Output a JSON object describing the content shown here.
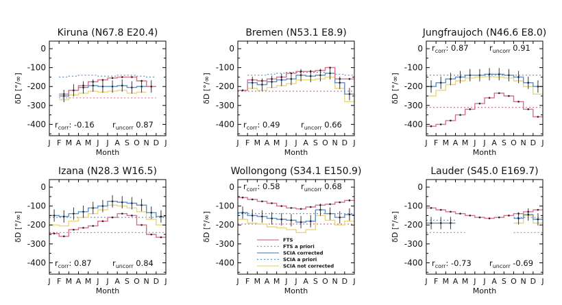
{
  "legend": [
    {
      "key": "fts",
      "label": "FTS",
      "color": "#d66f8a",
      "dash": ""
    },
    {
      "key": "fts_apriori",
      "label": "FTS a priori",
      "color": "#d66f8a",
      "dash": "2,3"
    },
    {
      "key": "scia_corr",
      "label": "SCIA corrected",
      "color": "#5a8ec4",
      "dash": ""
    },
    {
      "key": "scia_apriori",
      "label": "SCIA a priori",
      "color": "#5a8ec4",
      "dash": "2,3"
    },
    {
      "key": "scia_notcorr",
      "label": "SCIA not corrected",
      "color": "#e8d67c",
      "dash": ""
    }
  ],
  "chart_data": [
    {
      "type": "line",
      "title": "Kiruna (N67.8 E20.4)",
      "xlabel": "Month",
      "ylabel": "δD [°/∞]",
      "xticks": [
        "J",
        "F",
        "M",
        "A",
        "M",
        "J",
        "J",
        "A",
        "S",
        "O",
        "N",
        "D",
        "J"
      ],
      "yticks": [
        0,
        -100,
        -200,
        -300,
        -400
      ],
      "ylim": [
        -460,
        40
      ],
      "r_corr": "-0.16",
      "r_uncorr": "0.87",
      "r_position": "bottom",
      "series": {
        "fts": [
          null,
          -240,
          -220,
          -195,
          -175,
          -165,
          -155,
          -150,
          -150,
          -170,
          -200,
          null,
          null
        ],
        "fts_apriori": [
          null,
          -260,
          -260,
          -260,
          -260,
          -260,
          -260,
          -260,
          -260,
          -260,
          -260,
          null,
          null
        ],
        "scia_corr": [
          null,
          -250,
          -220,
          -205,
          -195,
          -200,
          -200,
          -195,
          -205,
          -200,
          -200,
          null,
          null
        ],
        "scia_apriori": [
          null,
          -150,
          -145,
          -140,
          -140,
          -145,
          -145,
          -140,
          -140,
          -145,
          -150,
          null,
          null
        ],
        "scia_notcorr": [
          null,
          -270,
          -245,
          -235,
          -225,
          -230,
          -225,
          -220,
          -235,
          -230,
          null,
          null,
          null
        ]
      }
    },
    {
      "type": "line",
      "title": "Bremen (N53.1 E8.9)",
      "xlabel": "Month",
      "ylabel": "δD [°/∞]",
      "xticks": [
        "J",
        "F",
        "M",
        "A",
        "M",
        "J",
        "J",
        "A",
        "S",
        "O",
        "N",
        "D",
        "J"
      ],
      "yticks": [
        0,
        -100,
        -200,
        -300,
        -400
      ],
      "ylim": [
        -460,
        40
      ],
      "r_corr": "0.49",
      "r_uncorr": "0.66",
      "r_position": "bottom",
      "series": {
        "fts": [
          -220,
          -165,
          -170,
          -160,
          -150,
          -130,
          -120,
          -120,
          -115,
          -100,
          -160,
          -160,
          null
        ],
        "fts_apriori": [
          -225,
          -225,
          -225,
          -225,
          -225,
          -225,
          -225,
          -225,
          -225,
          -225,
          -225,
          -225,
          null
        ],
        "scia_corr": [
          null,
          -180,
          -190,
          -175,
          -165,
          -160,
          -140,
          -145,
          -140,
          -130,
          -180,
          -240,
          null
        ],
        "scia_apriori": [
          null,
          -140,
          -140,
          -135,
          -130,
          -125,
          -125,
          -125,
          -125,
          -130,
          -135,
          -140,
          null
        ],
        "scia_notcorr": [
          null,
          -210,
          -220,
          -205,
          -195,
          -185,
          -165,
          -165,
          -160,
          -150,
          -210,
          -280,
          null
        ]
      }
    },
    {
      "type": "line",
      "title": "Jungfraujoch (N46.6 E8.0)",
      "xlabel": "Month",
      "ylabel": "δD [°/∞]",
      "xticks": [
        "J",
        "F",
        "M",
        "A",
        "M",
        "J",
        "J",
        "A",
        "S",
        "O",
        "N",
        "D",
        "J"
      ],
      "yticks": [
        0,
        -100,
        -200,
        -300,
        -400
      ],
      "ylim": [
        -460,
        40
      ],
      "r_corr": "0.87",
      "r_uncorr": "0.91",
      "r_position": "top",
      "series": {
        "fts": [
          -410,
          -400,
          -380,
          -350,
          -320,
          -290,
          -260,
          -235,
          -250,
          -280,
          -320,
          -360,
          -400
        ],
        "fts_apriori": [
          -310,
          -310,
          -310,
          -310,
          -310,
          -310,
          -310,
          -310,
          -310,
          -310,
          -310,
          -310,
          -310
        ],
        "scia_corr": [
          -200,
          -180,
          -160,
          -150,
          -140,
          -140,
          -135,
          -135,
          -140,
          -150,
          -180,
          -200,
          null
        ],
        "scia_apriori": [
          -140,
          -140,
          -140,
          -140,
          -140,
          -140,
          -140,
          -140,
          -140,
          -140,
          -140,
          -140,
          null
        ],
        "scia_notcorr": [
          -250,
          -220,
          -190,
          -170,
          -155,
          -150,
          -148,
          -150,
          -155,
          -170,
          -200,
          -240,
          null
        ]
      }
    },
    {
      "type": "line",
      "title": "Izana (N28.3 W16.5)",
      "xlabel": "Month",
      "ylabel": "δD [°/∞]",
      "xticks": [
        "J",
        "F",
        "M",
        "A",
        "M",
        "J",
        "J",
        "A",
        "S",
        "O",
        "N",
        "D",
        "J"
      ],
      "yticks": [
        0,
        -100,
        -200,
        -300,
        -400
      ],
      "ylim": [
        -460,
        40
      ],
      "r_corr": "0.87",
      "r_uncorr": "0.84",
      "r_position": "bottom",
      "series": {
        "fts": [
          -245,
          -260,
          -225,
          -215,
          -205,
          -180,
          -160,
          -140,
          -150,
          -200,
          -250,
          -265,
          null
        ],
        "fts_apriori": [
          -240,
          -240,
          -240,
          -240,
          -240,
          -240,
          -240,
          -240,
          -240,
          -240,
          -240,
          -240,
          null
        ],
        "scia_corr": [
          -150,
          -155,
          -140,
          -130,
          -110,
          -100,
          -75,
          -80,
          -85,
          -95,
          -135,
          -155,
          null
        ],
        "scia_apriori": [
          -160,
          -160,
          -160,
          -160,
          -160,
          -160,
          -160,
          -160,
          -160,
          -160,
          -160,
          -160,
          null
        ],
        "scia_notcorr": [
          -200,
          -205,
          -180,
          -160,
          -140,
          -120,
          -95,
          -100,
          -110,
          -130,
          -170,
          -200,
          null
        ]
      }
    },
    {
      "type": "line",
      "title": "Wollongong (S34.1 E150.9)",
      "xlabel": "Month",
      "ylabel": "δD [°/∞]",
      "xticks": [
        "J",
        "F",
        "M",
        "A",
        "M",
        "J",
        "J",
        "A",
        "S",
        "O",
        "N",
        "D",
        "J"
      ],
      "yticks": [
        0,
        -100,
        -200,
        -300,
        -400
      ],
      "ylim": [
        -460,
        40
      ],
      "r_corr": "0.58",
      "r_uncorr": "0.68",
      "r_position": "top",
      "show_legend": true,
      "series": {
        "fts": [
          -55,
          -65,
          -75,
          -85,
          -100,
          -110,
          -115,
          -105,
          -95,
          -90,
          -80,
          -70,
          -75
        ],
        "fts_apriori": [
          -195,
          -195,
          -195,
          -195,
          -195,
          -195,
          -195,
          -195,
          -195,
          -195,
          -195,
          -195,
          -195
        ],
        "scia_corr": [
          -135,
          -150,
          -155,
          -165,
          -170,
          -175,
          -185,
          -180,
          -120,
          -140,
          -160,
          -145,
          null
        ],
        "scia_apriori": [
          -140,
          -140,
          -140,
          -140,
          -140,
          -140,
          -140,
          -140,
          -140,
          -140,
          -140,
          -140,
          null
        ],
        "scia_notcorr": [
          -170,
          -190,
          -195,
          -210,
          -215,
          -225,
          -240,
          -225,
          -150,
          -175,
          -200,
          -180,
          null
        ]
      }
    },
    {
      "type": "line",
      "title": "Lauder (S45.0 E169.7)",
      "xlabel": "Month",
      "ylabel": "δD [°/∞]",
      "xticks": [
        "J",
        "F",
        "M",
        "A",
        "M",
        "J",
        "J",
        "A",
        "S",
        "O",
        "N",
        "D",
        "J"
      ],
      "yticks": [
        0,
        -100,
        -200,
        -300,
        -400
      ],
      "ylim": [
        -460,
        40
      ],
      "r_corr": "-0.73",
      "r_uncorr": "-0.69",
      "r_position": "bottom",
      "series": {
        "fts": [
          -110,
          -120,
          -130,
          -140,
          -150,
          -160,
          -165,
          -160,
          -150,
          -140,
          -130,
          -120,
          -115
        ],
        "fts_apriori": [
          -240,
          -240,
          -240,
          -240,
          null,
          null,
          null,
          null,
          null,
          -240,
          -240,
          -240,
          -240
        ],
        "scia_corr": [
          -190,
          -190,
          -190,
          null,
          null,
          null,
          null,
          null,
          null,
          -165,
          -145,
          -170,
          -180
        ],
        "scia_apriori": [
          -175,
          -175,
          -175,
          null,
          null,
          null,
          null,
          null,
          null,
          -160,
          -160,
          -160,
          -160
        ],
        "scia_notcorr": [
          null,
          null,
          null,
          null,
          null,
          null,
          null,
          null,
          null,
          -190,
          -150,
          -190,
          -200
        ]
      }
    }
  ]
}
